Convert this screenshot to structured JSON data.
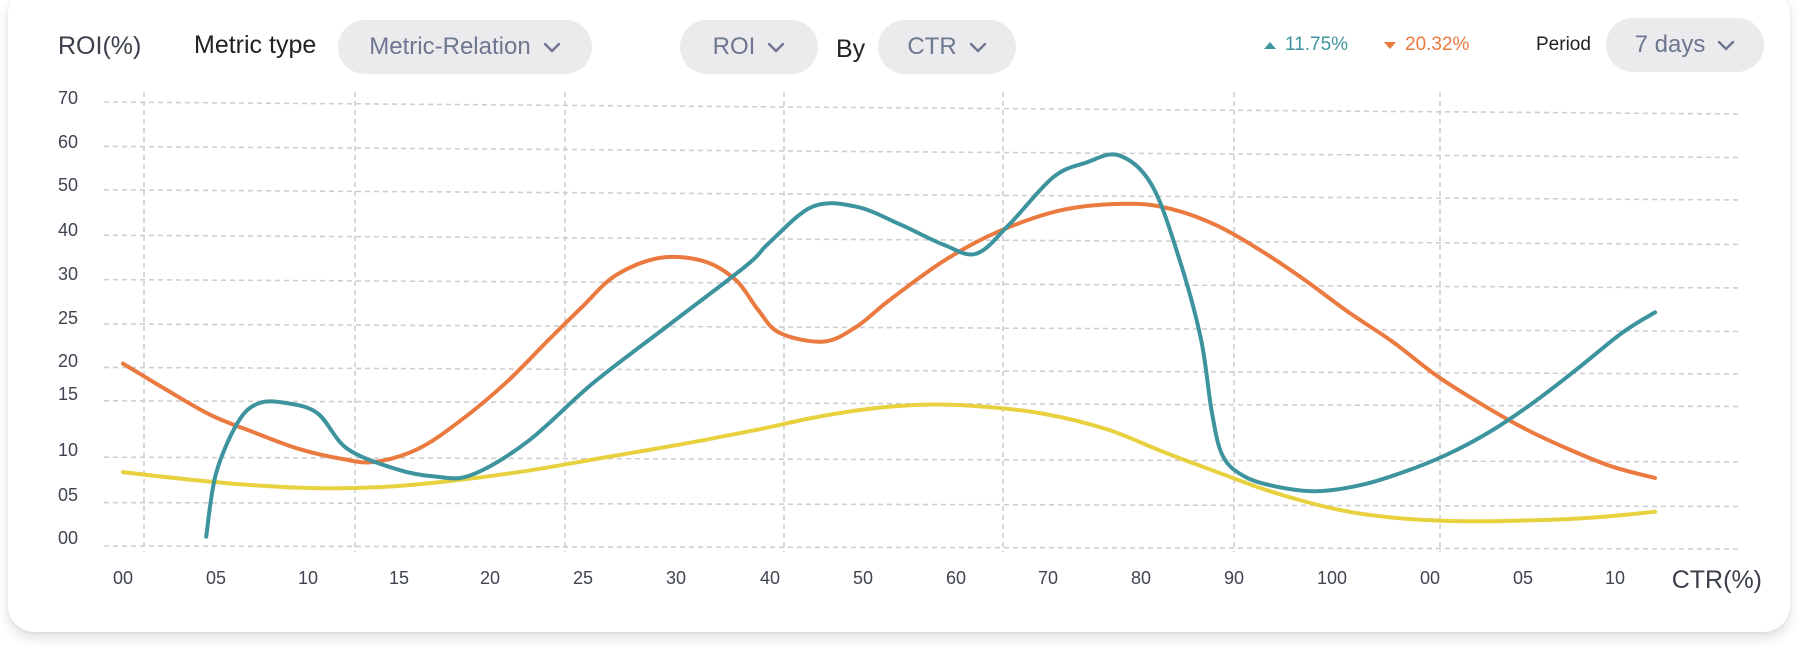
{
  "header": {
    "y_axis_title": "ROI(%)",
    "metric_type_label": "Metric type",
    "metric_type_value": "Metric-Relation",
    "metric_value": "ROI",
    "by_label": "By",
    "by_value": "CTR",
    "delta_up": "11.75%",
    "delta_down": "20.32%",
    "period_label": "Period",
    "period_value": "7 days"
  },
  "colors": {
    "teal": "#3d949e",
    "orange": "#ea7a3f",
    "yellow": "#e8d13f",
    "grid": "#cfcfcf",
    "pill_bg": "#ebebee"
  },
  "chart_data": {
    "type": "line",
    "xlabel": "CTR(%)",
    "ylabel": "ROI(%)",
    "x_tick_labels": [
      "00",
      "05",
      "10",
      "15",
      "20",
      "25",
      "30",
      "40",
      "50",
      "60",
      "70",
      "80",
      "90",
      "100",
      "00",
      "05",
      "10"
    ],
    "y_tick_labels": [
      "00",
      "05",
      "10",
      "15",
      "20",
      "25",
      "30",
      "40",
      "50",
      "60",
      "70"
    ],
    "grid": true,
    "series": [
      {
        "color": "#3d949e",
        "points": [
          [
            7.6,
            0.5
          ],
          [
            8.5,
            4.8
          ],
          [
            10.5,
            8.3
          ],
          [
            12.4,
            9.6
          ],
          [
            15,
            9.6
          ],
          [
            17.8,
            8.9
          ],
          [
            20.5,
            6.5
          ],
          [
            25,
            5.1
          ],
          [
            28.5,
            4.6
          ],
          [
            31.8,
            4.7
          ],
          [
            37,
            7
          ],
          [
            43,
            11
          ],
          [
            50,
            15
          ],
          [
            57,
            19
          ],
          [
            59,
            20.5
          ],
          [
            63,
            23
          ],
          [
            67,
            23
          ],
          [
            71,
            21.8
          ],
          [
            75,
            20.4
          ],
          [
            78,
            19.8
          ],
          [
            81,
            21.8
          ],
          [
            85,
            25
          ],
          [
            88,
            26
          ],
          [
            91,
            26.5
          ],
          [
            94,
            24.5
          ],
          [
            96.5,
            19.5
          ],
          [
            98.5,
            14
          ],
          [
            99.5,
            9
          ],
          [
            100.5,
            6
          ],
          [
            102.5,
            4.6
          ],
          [
            105.5,
            3.9
          ],
          [
            109,
            3.6
          ],
          [
            113,
            4
          ],
          [
            117,
            4.9
          ],
          [
            121,
            6.1
          ],
          [
            125,
            7.7
          ],
          [
            129,
            9.7
          ],
          [
            133,
            12
          ],
          [
            137,
            14.4
          ],
          [
            140,
            15.8
          ]
        ]
      },
      {
        "color": "#ea7a3f",
        "points": [
          [
            0,
            12.3
          ],
          [
            4,
            10.5
          ],
          [
            8,
            8.8
          ],
          [
            12,
            7.6
          ],
          [
            16,
            6.5
          ],
          [
            20,
            5.8
          ],
          [
            23,
            5.6
          ],
          [
            27,
            6.5
          ],
          [
            31,
            8.5
          ],
          [
            35,
            11
          ],
          [
            39,
            14
          ],
          [
            42,
            16.2
          ],
          [
            45,
            18.3
          ],
          [
            49,
            19.5
          ],
          [
            53,
            19.3
          ],
          [
            56,
            18
          ],
          [
            58,
            16
          ],
          [
            60,
            14.4
          ],
          [
            64,
            13.8
          ],
          [
            67,
            14.8
          ],
          [
            70,
            16.6
          ],
          [
            75,
            19.3
          ],
          [
            80,
            21.3
          ],
          [
            86,
            22.8
          ],
          [
            92,
            23.2
          ],
          [
            96,
            22.8
          ],
          [
            100,
            21.7
          ],
          [
            104,
            20
          ],
          [
            108,
            18
          ],
          [
            112,
            15.8
          ],
          [
            116,
            13.8
          ],
          [
            120,
            11.5
          ],
          [
            124,
            9.6
          ],
          [
            128,
            7.9
          ],
          [
            132,
            6.5
          ],
          [
            136,
            5.3
          ],
          [
            140,
            4.5
          ]
        ]
      },
      {
        "color": "#e8d13f",
        "points": [
          [
            0,
            4.9
          ],
          [
            6,
            4.4
          ],
          [
            12,
            4.0
          ],
          [
            18,
            3.8
          ],
          [
            24,
            3.9
          ],
          [
            30,
            4.3
          ],
          [
            37,
            5.0
          ],
          [
            44,
            5.9
          ],
          [
            51,
            6.8
          ],
          [
            58,
            7.8
          ],
          [
            63,
            8.6
          ],
          [
            68,
            9.2
          ],
          [
            73,
            9.5
          ],
          [
            78,
            9.4
          ],
          [
            84,
            8.9
          ],
          [
            90,
            7.8
          ],
          [
            95,
            6.3
          ],
          [
            100,
            4.9
          ],
          [
            104,
            3.8
          ],
          [
            108,
            2.9
          ],
          [
            112,
            2.2
          ],
          [
            116,
            1.8
          ],
          [
            120,
            1.6
          ],
          [
            124,
            1.55
          ],
          [
            128,
            1.6
          ],
          [
            132,
            1.7
          ],
          [
            136,
            1.9
          ],
          [
            140,
            2.2
          ]
        ]
      }
    ]
  }
}
